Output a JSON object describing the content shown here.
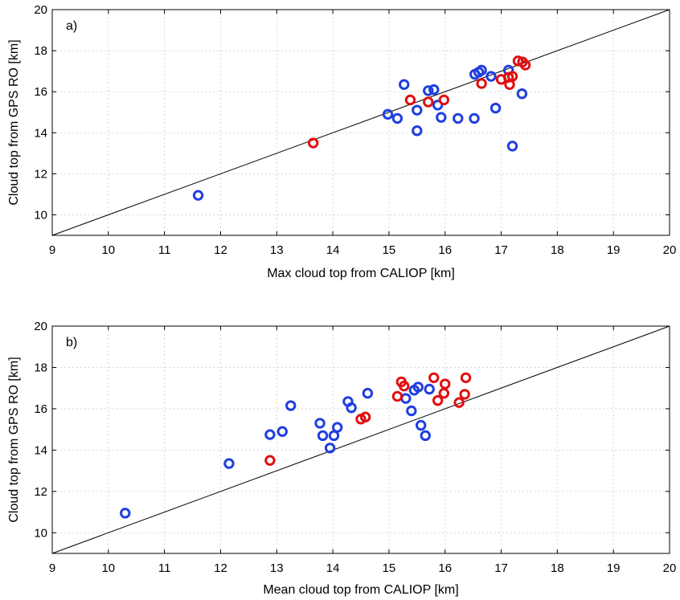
{
  "chart_data": [
    {
      "type": "scatter",
      "panel_label": "a)",
      "xlabel": "Max cloud top from CALIOP [km]",
      "ylabel": "Cloud top from GPS RO [km]",
      "xlim": [
        9,
        20
      ],
      "ylim": [
        9,
        20
      ],
      "xticks": [
        9,
        10,
        11,
        12,
        13,
        14,
        15,
        16,
        17,
        18,
        19,
        20
      ],
      "yticks": [
        10,
        12,
        14,
        16,
        18,
        20
      ],
      "grid": true,
      "reference_line": "1:1",
      "series": [
        {
          "color": "#1f3fe0",
          "points": [
            [
              11.6,
              10.95
            ],
            [
              14.98,
              14.9
            ],
            [
              15.15,
              14.7
            ],
            [
              15.27,
              16.35
            ],
            [
              15.5,
              15.1
            ],
            [
              15.5,
              14.1
            ],
            [
              15.7,
              16.05
            ],
            [
              15.8,
              16.1
            ],
            [
              15.87,
              15.35
            ],
            [
              15.93,
              14.75
            ],
            [
              16.23,
              14.7
            ],
            [
              16.52,
              14.7
            ],
            [
              16.53,
              16.85
            ],
            [
              16.6,
              16.95
            ],
            [
              16.65,
              17.05
            ],
            [
              16.82,
              16.75
            ],
            [
              16.9,
              15.2
            ],
            [
              17.13,
              17.05
            ],
            [
              17.2,
              13.35
            ],
            [
              17.37,
              15.9
            ]
          ]
        },
        {
          "color": "#e01010",
          "points": [
            [
              13.65,
              13.5
            ],
            [
              15.38,
              15.6
            ],
            [
              15.7,
              15.5
            ],
            [
              15.98,
              15.6
            ],
            [
              16.65,
              16.4
            ],
            [
              17.0,
              16.6
            ],
            [
              17.13,
              16.7
            ],
            [
              17.15,
              16.35
            ],
            [
              17.2,
              16.75
            ],
            [
              17.3,
              17.5
            ],
            [
              17.38,
              17.45
            ],
            [
              17.43,
              17.3
            ]
          ]
        }
      ]
    },
    {
      "type": "scatter",
      "panel_label": "b)",
      "xlabel": "Mean cloud top from CALIOP [km]",
      "ylabel": "Cloud top from GPS RO [km]",
      "xlim": [
        9,
        20
      ],
      "ylim": [
        9,
        20
      ],
      "xticks": [
        9,
        10,
        11,
        12,
        13,
        14,
        15,
        16,
        17,
        18,
        19,
        20
      ],
      "yticks": [
        10,
        12,
        14,
        16,
        18,
        20
      ],
      "grid": true,
      "reference_line": "1:1",
      "series": [
        {
          "color": "#1f3fe0",
          "points": [
            [
              10.3,
              10.95
            ],
            [
              12.15,
              13.35
            ],
            [
              12.88,
              14.75
            ],
            [
              13.1,
              14.9
            ],
            [
              13.25,
              16.15
            ],
            [
              13.77,
              15.3
            ],
            [
              13.82,
              14.7
            ],
            [
              13.95,
              14.1
            ],
            [
              14.02,
              14.7
            ],
            [
              14.08,
              15.1
            ],
            [
              14.27,
              16.35
            ],
            [
              14.33,
              16.05
            ],
            [
              14.62,
              16.75
            ],
            [
              15.3,
              16.5
            ],
            [
              15.4,
              15.9
            ],
            [
              15.45,
              16.9
            ],
            [
              15.52,
              17.05
            ],
            [
              15.57,
              15.2
            ],
            [
              15.65,
              14.7
            ],
            [
              15.72,
              16.95
            ]
          ]
        },
        {
          "color": "#e01010",
          "points": [
            [
              12.88,
              13.5
            ],
            [
              14.5,
              15.5
            ],
            [
              14.58,
              15.6
            ],
            [
              15.15,
              16.6
            ],
            [
              15.22,
              17.3
            ],
            [
              15.27,
              17.1
            ],
            [
              15.8,
              17.5
            ],
            [
              15.87,
              16.4
            ],
            [
              15.98,
              16.75
            ],
            [
              16.0,
              17.2
            ],
            [
              16.25,
              16.3
            ],
            [
              16.35,
              16.7
            ],
            [
              16.37,
              17.5
            ]
          ]
        }
      ]
    }
  ]
}
